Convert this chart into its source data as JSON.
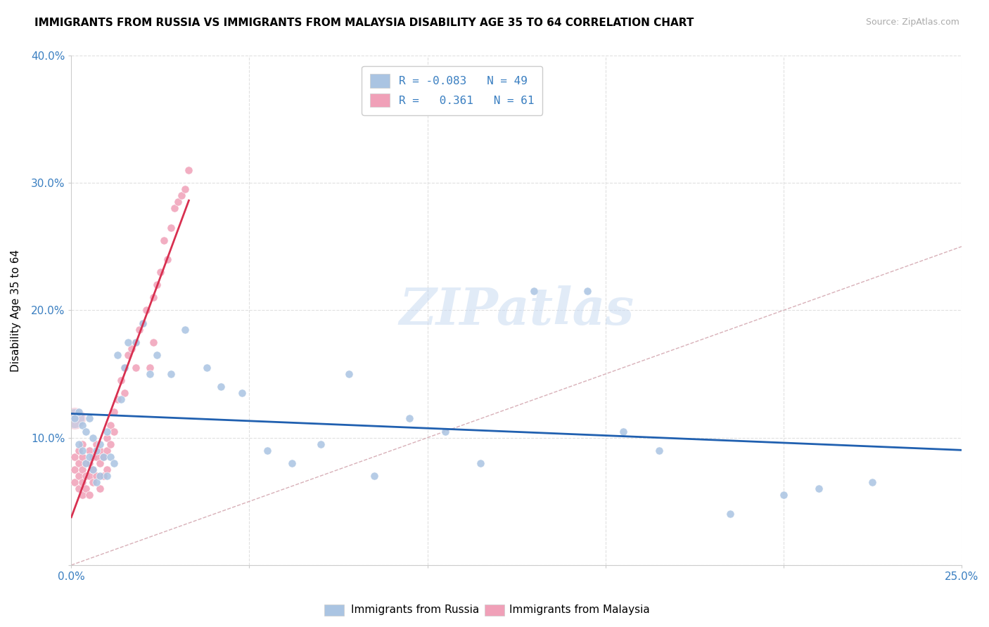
{
  "title": "IMMIGRANTS FROM RUSSIA VS IMMIGRANTS FROM MALAYSIA DISABILITY AGE 35 TO 64 CORRELATION CHART",
  "source": "Source: ZipAtlas.com",
  "ylabel": "Disability Age 35 to 64",
  "xlim": [
    0.0,
    0.25
  ],
  "ylim": [
    0.0,
    0.4
  ],
  "xticks": [
    0.0,
    0.05,
    0.1,
    0.15,
    0.2,
    0.25
  ],
  "yticks": [
    0.0,
    0.1,
    0.2,
    0.3,
    0.4
  ],
  "xticklabels": [
    "0.0%",
    "",
    "",
    "",
    "",
    "25.0%"
  ],
  "yticklabels": [
    "",
    "10.0%",
    "20.0%",
    "30.0%",
    "40.0%"
  ],
  "legend_r_russia": "-0.083",
  "legend_n_russia": "49",
  "legend_r_malaysia": "0.361",
  "legend_n_malaysia": "61",
  "russia_color": "#aac4e2",
  "malaysia_color": "#f0a0b8",
  "russia_line_color": "#2060b0",
  "malaysia_line_color": "#d83050",
  "watermark": "ZIPatlas",
  "russia_x": [
    0.001,
    0.002,
    0.002,
    0.003,
    0.003,
    0.004,
    0.004,
    0.005,
    0.005,
    0.006,
    0.006,
    0.007,
    0.007,
    0.008,
    0.008,
    0.009,
    0.01,
    0.01,
    0.011,
    0.012,
    0.013,
    0.014,
    0.015,
    0.016,
    0.018,
    0.02,
    0.022,
    0.024,
    0.028,
    0.032,
    0.038,
    0.042,
    0.048,
    0.055,
    0.062,
    0.07,
    0.078,
    0.085,
    0.095,
    0.105,
    0.115,
    0.13,
    0.145,
    0.155,
    0.165,
    0.185,
    0.2,
    0.21,
    0.225
  ],
  "russia_y": [
    0.115,
    0.12,
    0.095,
    0.11,
    0.09,
    0.105,
    0.08,
    0.115,
    0.085,
    0.1,
    0.075,
    0.09,
    0.065,
    0.095,
    0.07,
    0.085,
    0.105,
    0.07,
    0.085,
    0.08,
    0.165,
    0.13,
    0.155,
    0.175,
    0.175,
    0.19,
    0.15,
    0.165,
    0.15,
    0.185,
    0.155,
    0.14,
    0.135,
    0.09,
    0.08,
    0.095,
    0.15,
    0.07,
    0.115,
    0.105,
    0.08,
    0.215,
    0.215,
    0.105,
    0.09,
    0.04,
    0.055,
    0.06,
    0.065
  ],
  "malaysia_x": [
    0.001,
    0.001,
    0.001,
    0.002,
    0.002,
    0.002,
    0.002,
    0.003,
    0.003,
    0.003,
    0.003,
    0.003,
    0.004,
    0.004,
    0.004,
    0.005,
    0.005,
    0.005,
    0.005,
    0.006,
    0.006,
    0.006,
    0.007,
    0.007,
    0.007,
    0.008,
    0.008,
    0.008,
    0.009,
    0.009,
    0.01,
    0.01,
    0.01,
    0.011,
    0.011,
    0.012,
    0.012,
    0.013,
    0.014,
    0.015,
    0.015,
    0.016,
    0.017,
    0.018,
    0.018,
    0.019,
    0.02,
    0.021,
    0.022,
    0.023,
    0.023,
    0.024,
    0.025,
    0.026,
    0.027,
    0.028,
    0.029,
    0.03,
    0.031,
    0.032,
    0.033
  ],
  "malaysia_y": [
    0.085,
    0.075,
    0.065,
    0.09,
    0.08,
    0.07,
    0.06,
    0.095,
    0.085,
    0.075,
    0.065,
    0.055,
    0.08,
    0.07,
    0.06,
    0.09,
    0.08,
    0.07,
    0.055,
    0.085,
    0.075,
    0.065,
    0.095,
    0.085,
    0.07,
    0.09,
    0.08,
    0.06,
    0.085,
    0.07,
    0.1,
    0.09,
    0.075,
    0.11,
    0.095,
    0.12,
    0.105,
    0.13,
    0.145,
    0.155,
    0.135,
    0.165,
    0.17,
    0.175,
    0.155,
    0.185,
    0.19,
    0.2,
    0.155,
    0.21,
    0.175,
    0.22,
    0.23,
    0.255,
    0.24,
    0.265,
    0.28,
    0.285,
    0.29,
    0.295,
    0.31
  ],
  "malaysia_large_x": [
    0.001
  ],
  "malaysia_large_y": [
    0.115
  ],
  "russia_large_x": [
    0.001
  ],
  "russia_large_y": [
    0.115
  ]
}
